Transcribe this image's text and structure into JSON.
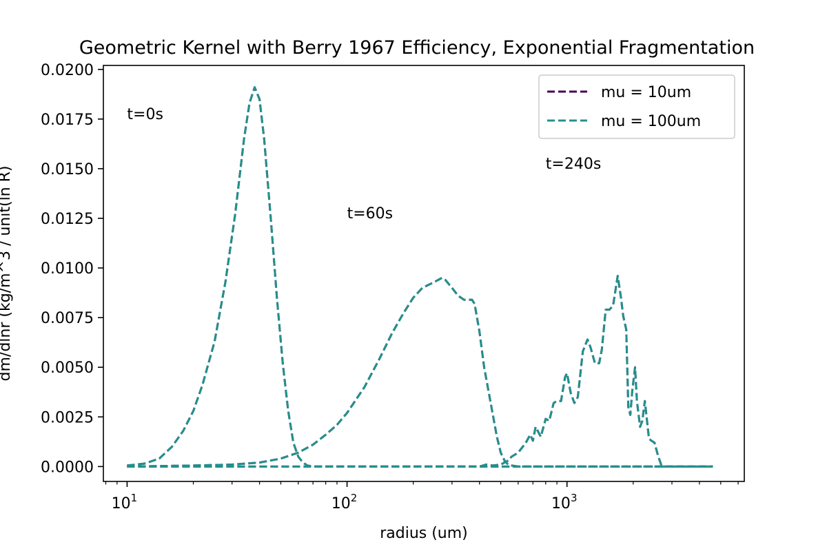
{
  "chart_data": {
    "type": "line",
    "title": "Geometric Kernel with Berry 1967 Efficiency, Exponential Fragmentation",
    "xlabel": "radius (um)",
    "ylabel": "dm/dlnr (kg/m^3 / unit(ln R)",
    "xscale": "log",
    "xlim": [
      7.8,
      6400
    ],
    "ylim": [
      -0.00075,
      0.0202
    ],
    "yticks": [
      0.0,
      0.0025,
      0.005,
      0.0075,
      0.01,
      0.0125,
      0.015,
      0.0175,
      0.02
    ],
    "ytick_labels": [
      "0.0000",
      "0.0025",
      "0.0050",
      "0.0075",
      "0.0100",
      "0.0125",
      "0.0150",
      "0.0175",
      "0.0200"
    ],
    "xticks": [
      10,
      100,
      1000
    ],
    "xtick_labels": [
      {
        "base": "10",
        "exp": "1"
      },
      {
        "base": "10",
        "exp": "2"
      },
      {
        "base": "10",
        "exp": "3"
      }
    ],
    "grid": false,
    "legend_position": "top-right",
    "annotations": [
      {
        "text": "t=0s",
        "x": 10,
        "y": 0.0175
      },
      {
        "text": "t=60s",
        "x": 100,
        "y": 0.0125
      },
      {
        "text": "t=240s",
        "x": 800,
        "y": 0.015
      }
    ],
    "series": [
      {
        "name": "mu = 10um",
        "color": "#440154",
        "style": "dashed",
        "curves": [
          {
            "label": "t=0s",
            "x": [
              10,
              12,
              14,
              16,
              18,
              20,
              22,
              25,
              28,
              31,
              34,
              36,
              38,
              40,
              42,
              45,
              48,
              51,
              54,
              57,
              60,
              63,
              66,
              70,
              80,
              100,
              1000,
              4600
            ],
            "y": [
              5e-05,
              0.00015,
              0.0004,
              0.001,
              0.0018,
              0.0028,
              0.0041,
              0.0063,
              0.0093,
              0.0127,
              0.0165,
              0.0183,
              0.0191,
              0.0185,
              0.0165,
              0.0125,
              0.0085,
              0.0052,
              0.0028,
              0.0012,
              0.0005,
              0.0002,
              5e-05,
              0.0,
              0.0,
              0.0,
              0.0,
              0.0
            ]
          },
          {
            "label": "t=60s",
            "x": [
              10,
              20,
              30,
              40,
              50,
              60,
              70,
              80,
              90,
              100,
              120,
              140,
              160,
              180,
              200,
              220,
              250,
              270,
              280,
              300,
              320,
              340,
              370,
              380,
              400,
              420,
              450,
              480,
              500,
              520,
              540,
              560,
              600,
              1000,
              4600
            ],
            "y": [
              0.0,
              5e-05,
              0.0001,
              0.0002,
              0.0004,
              0.0007,
              0.0011,
              0.0016,
              0.0021,
              0.0027,
              0.004,
              0.0054,
              0.0067,
              0.0077,
              0.0085,
              0.009,
              0.0093,
              0.0095,
              0.0094,
              0.009,
              0.0086,
              0.0084,
              0.0084,
              0.0082,
              0.0068,
              0.005,
              0.0032,
              0.0015,
              0.0007,
              0.0003,
              0.0001,
              5e-05,
              0.0,
              0.0,
              0.0
            ]
          },
          {
            "label": "t=240s",
            "x": [
              10,
              100,
              400,
              430,
              460,
              500,
              540,
              560,
              600,
              650,
              680,
              700,
              720,
              760,
              800,
              830,
              870,
              900,
              940,
              980,
              1000,
              1040,
              1080,
              1120,
              1180,
              1240,
              1280,
              1340,
              1400,
              1440,
              1500,
              1560,
              1620,
              1700,
              1760,
              1800,
              1860,
              1900,
              1940,
              1980,
              2040,
              2080,
              2150,
              2200,
              2260,
              2300,
              2360,
              2420,
              2500,
              2600,
              2700,
              3000,
              4600
            ],
            "y": [
              0.0,
              0.0,
              0.0,
              0.0001,
              5e-05,
              0.0001,
              0.0003,
              0.0005,
              0.0007,
              0.0012,
              0.0016,
              0.0013,
              0.002,
              0.0015,
              0.0024,
              0.0023,
              0.0032,
              0.0033,
              0.0033,
              0.0045,
              0.0047,
              0.0037,
              0.0032,
              0.0035,
              0.0058,
              0.0064,
              0.006,
              0.0052,
              0.0052,
              0.0059,
              0.0079,
              0.0079,
              0.0081,
              0.0096,
              0.0085,
              0.0076,
              0.0069,
              0.003,
              0.0026,
              0.0038,
              0.005,
              0.0033,
              0.002,
              0.0023,
              0.0033,
              0.0025,
              0.0014,
              0.0013,
              0.0012,
              0.0005,
              0.0,
              0.0,
              0.0
            ]
          }
        ]
      },
      {
        "name": "mu = 100um",
        "color": "#21918c",
        "style": "dashed",
        "curves": "same"
      }
    ]
  }
}
